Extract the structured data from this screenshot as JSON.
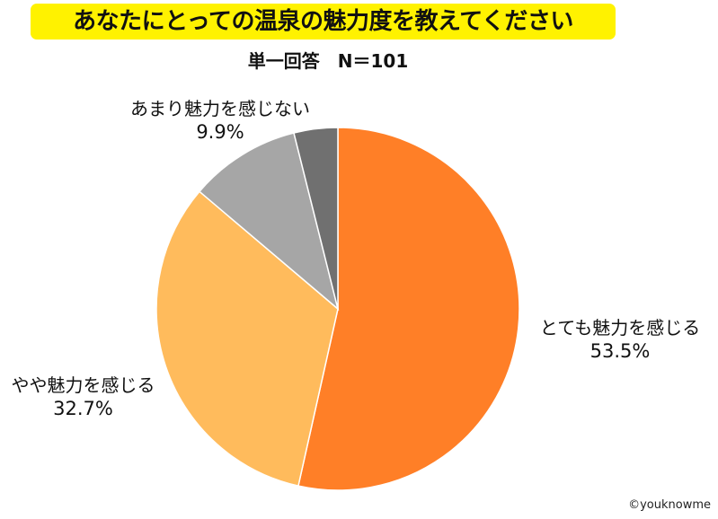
{
  "header": {
    "title": "あなたにとっての温泉の魅力度を教えてください",
    "subtitle": "単一回答　N＝101"
  },
  "footer": {
    "copyright": "©youknowme"
  },
  "chart_data": {
    "type": "pie",
    "title": "あなたにとっての温泉の魅力度を教えてください",
    "subtitle": "単一回答　N＝101",
    "start": "12 o'clock",
    "direction": "clockwise",
    "slices": [
      {
        "label": "とても魅力を感じる",
        "value": 53.5,
        "value_label": "53.5%",
        "color": "#FF7F27"
      },
      {
        "label": "やや魅力を感じる",
        "value": 32.7,
        "value_label": "32.7%",
        "color": "#FFBB5C"
      },
      {
        "label": "あまり魅力を感じない",
        "value": 9.9,
        "value_label": "9.9%",
        "color": "#A6A6A6"
      },
      {
        "label": "",
        "value": 3.9,
        "value_label": "",
        "color": "#707070"
      }
    ]
  }
}
